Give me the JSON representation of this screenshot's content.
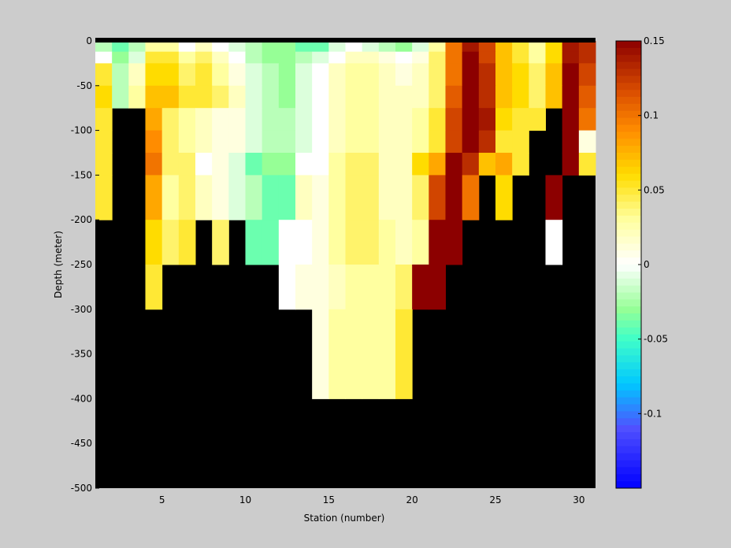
{
  "chart_data": {
    "type": "heatmap",
    "title": "",
    "xlabel": "Station (number)",
    "ylabel": "Depth (meter)",
    "xlim": [
      1,
      31
    ],
    "ylim": [
      -500,
      0
    ],
    "xticks": [
      5,
      10,
      15,
      20,
      25,
      30
    ],
    "yticks": [
      0,
      -50,
      -100,
      -150,
      -200,
      -250,
      -300,
      -350,
      -400,
      -450,
      -500
    ],
    "stations": [
      1,
      2,
      3,
      4,
      5,
      6,
      7,
      8,
      9,
      10,
      11,
      12,
      13,
      14,
      15,
      16,
      17,
      18,
      19,
      20,
      21,
      22,
      23,
      24,
      25,
      26,
      27,
      28,
      29,
      30
    ],
    "depth_edges": [
      0,
      -12,
      -25,
      -50,
      -75,
      -100,
      -125,
      -150,
      -200,
      -250,
      -300,
      -400
    ],
    "no_data_color": "#000000",
    "colormap": "jet-like diverging (blue-cyan-green-white-yellow-orange-dark red)",
    "colorbar": {
      "range": [
        -0.15,
        0.15
      ],
      "tick_values": [
        0.15,
        0.1,
        0.05,
        0,
        -0.05,
        -0.1
      ]
    },
    "values": [
      [
        -0.02,
        -0.04,
        -0.02,
        0.03,
        0.03,
        0.0,
        0.02,
        0.0,
        -0.01,
        -0.02,
        -0.03,
        -0.03,
        -0.04,
        -0.04,
        -0.01,
        0.0,
        -0.01,
        -0.02,
        -0.03,
        -0.01,
        0.03,
        0.1,
        0.14,
        0.12,
        0.07,
        0.05,
        0.03,
        0.06,
        0.14,
        0.13
      ],
      [
        0.0,
        -0.03,
        -0.01,
        0.05,
        0.05,
        0.03,
        0.04,
        0.02,
        0.0,
        -0.02,
        -0.03,
        -0.03,
        -0.02,
        -0.01,
        0.0,
        0.02,
        0.02,
        0.01,
        0.0,
        0.01,
        0.04,
        0.1,
        0.15,
        0.12,
        0.07,
        0.05,
        0.03,
        0.06,
        0.14,
        0.13
      ],
      [
        0.05,
        -0.02,
        0.02,
        0.06,
        0.06,
        0.04,
        0.05,
        0.03,
        0.01,
        -0.01,
        -0.02,
        -0.03,
        -0.01,
        0.0,
        0.02,
        0.03,
        0.03,
        0.02,
        0.01,
        0.02,
        0.04,
        0.1,
        0.15,
        0.13,
        0.07,
        0.06,
        0.04,
        0.07,
        0.15,
        0.12
      ],
      [
        0.06,
        -0.02,
        0.03,
        0.07,
        0.07,
        0.05,
        0.05,
        0.04,
        0.02,
        -0.01,
        -0.02,
        -0.03,
        -0.01,
        0.0,
        0.02,
        0.03,
        0.03,
        0.02,
        0.02,
        0.02,
        0.04,
        0.11,
        0.15,
        0.13,
        0.07,
        0.06,
        0.04,
        0.07,
        0.15,
        0.11
      ],
      [
        0.05,
        null,
        null,
        0.08,
        0.04,
        0.03,
        0.02,
        0.01,
        0.01,
        -0.01,
        -0.02,
        -0.02,
        -0.01,
        0.0,
        0.02,
        0.03,
        0.03,
        0.02,
        0.02,
        0.03,
        0.05,
        0.12,
        0.15,
        0.14,
        0.06,
        0.05,
        0.05,
        null,
        0.15,
        0.1
      ],
      [
        0.05,
        null,
        null,
        0.09,
        0.04,
        0.03,
        0.02,
        0.01,
        0.01,
        -0.01,
        -0.02,
        -0.02,
        -0.01,
        0.0,
        0.02,
        0.03,
        0.03,
        0.02,
        0.02,
        0.03,
        0.05,
        0.12,
        0.15,
        0.13,
        0.05,
        0.05,
        null,
        null,
        0.15,
        0.01
      ],
      [
        0.05,
        null,
        null,
        0.1,
        0.04,
        0.04,
        0.0,
        0.01,
        -0.01,
        -0.04,
        -0.03,
        -0.03,
        0.0,
        0.0,
        0.03,
        0.04,
        0.04,
        0.02,
        0.02,
        0.06,
        0.08,
        0.15,
        0.13,
        0.07,
        0.08,
        0.05,
        null,
        null,
        0.15,
        0.05
      ],
      [
        0.05,
        null,
        null,
        0.08,
        0.03,
        0.04,
        0.02,
        0.01,
        -0.01,
        -0.02,
        -0.04,
        -0.04,
        0.02,
        0.01,
        0.03,
        0.04,
        0.04,
        0.02,
        0.02,
        0.04,
        0.12,
        0.15,
        0.1,
        null,
        0.06,
        null,
        null,
        0.15,
        null,
        null
      ],
      [
        null,
        null,
        null,
        0.06,
        0.04,
        0.05,
        null,
        0.04,
        null,
        -0.04,
        -0.04,
        0.0,
        0.0,
        0.01,
        0.03,
        0.04,
        0.04,
        0.03,
        0.02,
        0.03,
        0.15,
        0.15,
        null,
        null,
        null,
        null,
        null,
        0.0,
        null,
        null
      ],
      [
        null,
        null,
        null,
        0.05,
        null,
        null,
        null,
        null,
        null,
        null,
        null,
        0.0,
        0.01,
        0.01,
        0.02,
        0.03,
        0.03,
        0.03,
        0.04,
        0.15,
        0.15,
        null,
        null,
        null,
        null,
        null,
        null,
        null,
        null,
        null
      ],
      [
        null,
        null,
        null,
        null,
        null,
        null,
        null,
        null,
        null,
        null,
        null,
        null,
        null,
        0.01,
        0.03,
        0.03,
        0.03,
        0.03,
        0.05,
        null,
        null,
        null,
        null,
        null,
        null,
        null,
        null,
        null,
        null,
        null
      ]
    ]
  }
}
